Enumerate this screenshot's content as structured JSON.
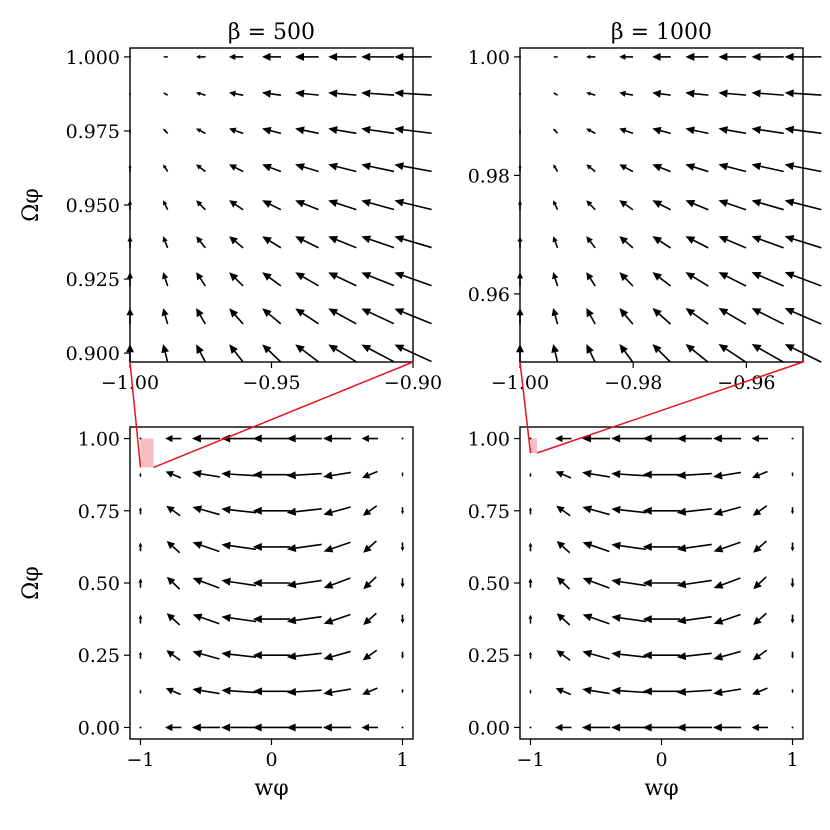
{
  "chart_data": [
    {
      "id": "p500z",
      "type": "quiver",
      "title": "β = 500",
      "xlabel": "",
      "ylabel": "Ωφ",
      "xlim": [
        -1.0,
        -0.9
      ],
      "ylim": [
        0.897,
        1.003
      ],
      "x_ticks": [
        -1.0,
        -0.95,
        -0.9
      ],
      "x_tick_labels": [
        "−1.00",
        "−0.95",
        "−0.90"
      ],
      "y_ticks": [
        0.9,
        0.925,
        0.95,
        0.975,
        1.0
      ],
      "y_tick_labels": [
        "0.900",
        "0.925",
        "0.950",
        "0.975",
        "1.000"
      ],
      "grid_x": [
        -1.0,
        -0.9875,
        -0.975,
        -0.9625,
        -0.95,
        -0.9375,
        -0.925,
        -0.9125,
        -0.9
      ],
      "grid_y": [
        0.9,
        0.9125,
        0.925,
        0.9375,
        0.95,
        0.9625,
        0.975,
        0.9875,
        1.0
      ],
      "beta": 500
    },
    {
      "id": "p1000z",
      "type": "quiver",
      "title": "β = 1000",
      "xlabel": "",
      "ylabel": "",
      "xlim": [
        -1.0,
        -0.95
      ],
      "ylim": [
        0.9485,
        1.0015
      ],
      "x_ticks": [
        -1.0,
        -0.98,
        -0.96
      ],
      "x_tick_labels": [
        "−1.00",
        "−0.98",
        "−0.96"
      ],
      "y_ticks": [
        0.96,
        0.98,
        1.0
      ],
      "y_tick_labels": [
        "0.96",
        "0.98",
        "1.00"
      ],
      "grid_x": [
        -1.0,
        -0.99375,
        -0.9875,
        -0.98125,
        -0.975,
        -0.96875,
        -0.9625,
        -0.95625,
        -0.95
      ],
      "grid_y": [
        0.95,
        0.95625,
        0.9625,
        0.96875,
        0.975,
        0.98125,
        0.9875,
        0.99375,
        1.0
      ],
      "beta": 1000
    },
    {
      "id": "p500",
      "type": "quiver",
      "title": "",
      "xlabel": "wφ",
      "ylabel": "Ωφ",
      "xlim": [
        -1.08,
        1.08
      ],
      "ylim": [
        -0.04,
        1.04
      ],
      "x_ticks": [
        -1,
        0,
        1
      ],
      "x_tick_labels": [
        "−1",
        "0",
        "1"
      ],
      "y_ticks": [
        0.0,
        0.25,
        0.5,
        0.75,
        1.0
      ],
      "y_tick_labels": [
        "0.00",
        "0.25",
        "0.50",
        "0.75",
        "1.00"
      ],
      "grid_x": [
        -1.0,
        -0.75,
        -0.5,
        -0.25,
        0.0,
        0.25,
        0.5,
        0.75,
        1.0
      ],
      "grid_y": [
        0.0,
        0.125,
        0.25,
        0.375,
        0.5,
        0.625,
        0.75,
        0.875,
        1.0
      ],
      "beta": 500,
      "inset_region": {
        "x": [
          -1.0,
          -0.9
        ],
        "y": [
          0.9,
          1.0
        ]
      },
      "highlight_color": "#f7b6b9"
    },
    {
      "id": "p1000",
      "type": "quiver",
      "title": "",
      "xlabel": "wφ",
      "ylabel": "",
      "xlim": [
        -1.08,
        1.08
      ],
      "ylim": [
        -0.04,
        1.04
      ],
      "x_ticks": [
        -1,
        0,
        1
      ],
      "x_tick_labels": [
        "−1",
        "0",
        "1"
      ],
      "y_ticks": [
        0.0,
        0.25,
        0.5,
        0.75,
        1.0
      ],
      "y_tick_labels": [
        "0.00",
        "0.25",
        "0.50",
        "0.75",
        "1.00"
      ],
      "grid_x": [
        -1.0,
        -0.75,
        -0.5,
        -0.25,
        0.0,
        0.25,
        0.5,
        0.75,
        1.0
      ],
      "grid_y": [
        0.0,
        0.125,
        0.25,
        0.375,
        0.5,
        0.625,
        0.75,
        0.875,
        1.0
      ],
      "beta": 1000,
      "inset_region": {
        "x": [
          -1.0,
          -0.95
        ],
        "y": [
          0.95,
          1.0
        ]
      },
      "highlight_color": "#f7b6b9"
    }
  ],
  "colors": {
    "arrow": "#000000",
    "zoom_lines": "#e8141c",
    "highlight": "#f7b6b9"
  }
}
